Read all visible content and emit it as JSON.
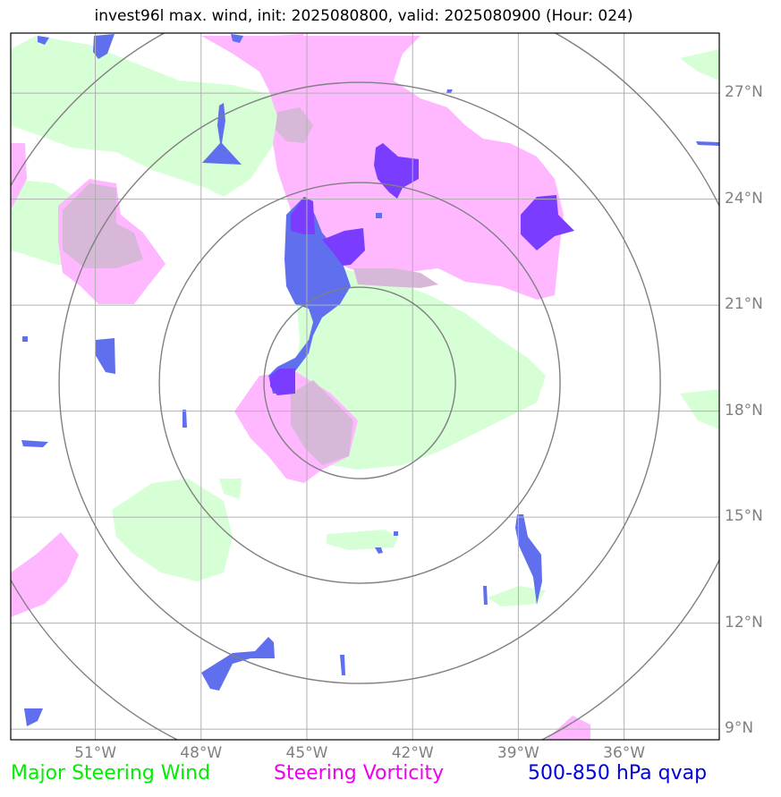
{
  "title": "invest96l max. wind, init: 2025080800, valid: 2025080900 (Hour: 024)",
  "lat_labels": [
    "27°N",
    "24°N",
    "21°N",
    "18°N",
    "15°N",
    "12°N",
    "9°N"
  ],
  "lon_labels": [
    "51°W",
    "48°W",
    "45°W",
    "42°W",
    "39°W",
    "36°W"
  ],
  "legend": {
    "green": "Major Steering Wind",
    "magenta": "Steering Vorticity",
    "blue": "500-850 hPa qvap"
  },
  "colors": {
    "green_fill": "#d6ffd6",
    "magenta_fill": "#ffb8ff",
    "blue_fill": "#5f6fee",
    "violet_fill": "#7a3cff",
    "grid": "#b0b0b0",
    "rings": "#808080"
  },
  "map": {
    "lat_range": [
      8.7,
      28.7
    ],
    "lon_range": [
      -53.4,
      -33.3
    ],
    "storm_center": {
      "lat": 18.8,
      "lon": -43.5
    },
    "ring_count": 4
  }
}
